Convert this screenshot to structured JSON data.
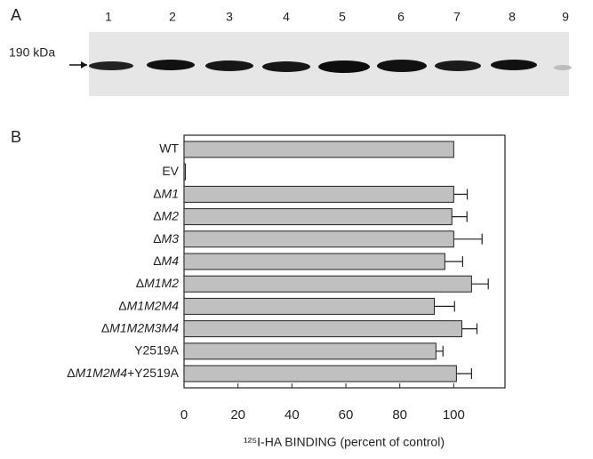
{
  "panel_a": {
    "label": "A",
    "marker": "190 kDa",
    "lanes": [
      "1",
      "2",
      "3",
      "4",
      "5",
      "6",
      "7",
      "8",
      "9"
    ]
  },
  "chart_data": {
    "type": "barh",
    "panel_label": "B",
    "categories": [
      "WT",
      "EV",
      "ΔM1",
      "ΔM2",
      "ΔM3",
      "ΔM4",
      "ΔM1M2",
      "ΔM1M2M4",
      "ΔM1M2M3M4",
      "Y2519A",
      "ΔM1M2M4+Y2519A"
    ],
    "values": [
      100,
      0.5,
      100,
      99.3,
      100,
      96.7,
      106.6,
      92.8,
      103,
      93.4,
      101
    ],
    "errors": [
      null,
      null,
      5,
      5.6,
      10.5,
      6.6,
      6.2,
      7.5,
      5.6,
      2.6,
      5.6
    ],
    "color": "#c0c0c0",
    "x_label": "¹²⁵I-HA BINDING (percent of control)",
    "xlim": [
      0,
      119
    ],
    "xticks": [
      0,
      20,
      40,
      60,
      80,
      100
    ]
  }
}
